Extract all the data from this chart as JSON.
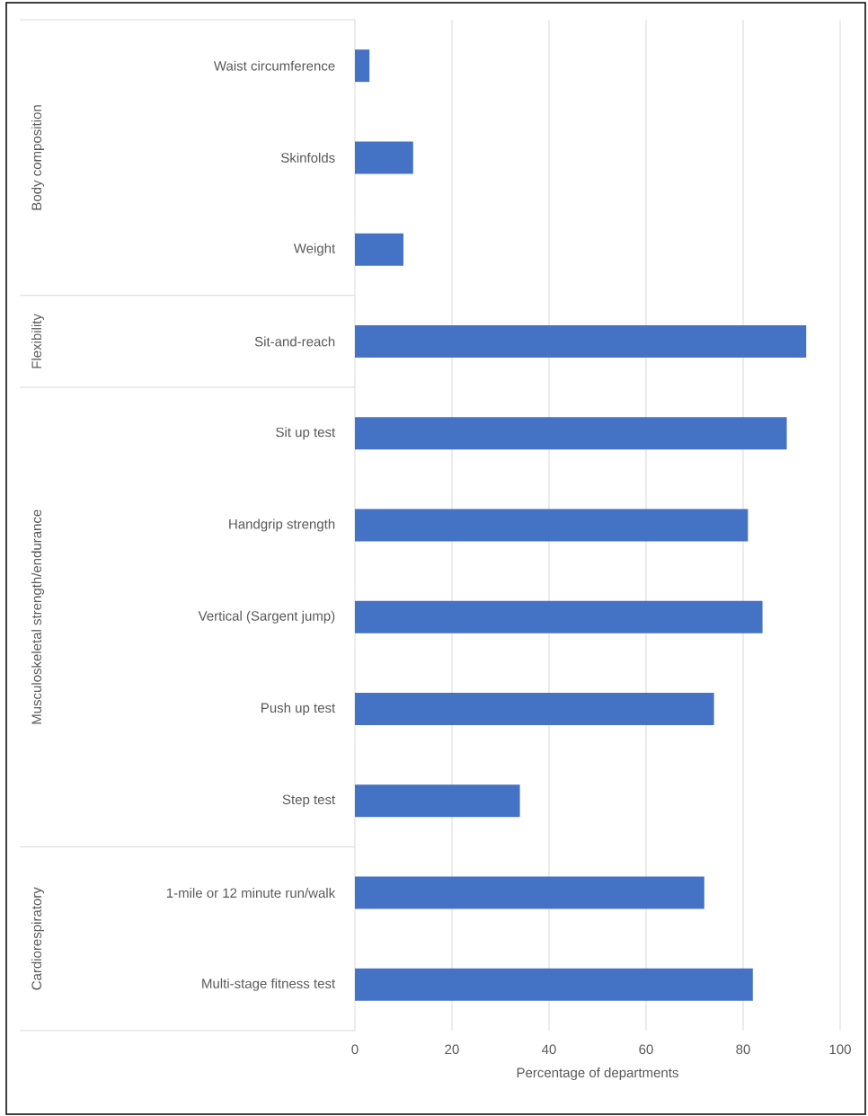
{
  "chart_data": {
    "type": "bar",
    "orientation": "horizontal",
    "categories": [
      "Waist circumference",
      "Skinfolds",
      "Weight",
      "Sit-and-reach",
      "Sit up test",
      "Handgrip strength",
      "Vertical (Sargent jump)",
      "Push up test",
      "Step test",
      "1-mile or 12 minute run/walk",
      "Multi-stage fitness test"
    ],
    "values": [
      3,
      12,
      10,
      93,
      89,
      81,
      84,
      74,
      34,
      72,
      82
    ],
    "color": "#4472c4",
    "xlim": [
      0,
      100
    ],
    "xticks": [
      0,
      20,
      40,
      60,
      80,
      100
    ],
    "xlabel": "Percentage of departments",
    "grid": "x",
    "annotations": [
      "Body composition",
      "Flexibility",
      "Musculoskeletal strength/endurance",
      "Cardiorespiratory"
    ]
  }
}
